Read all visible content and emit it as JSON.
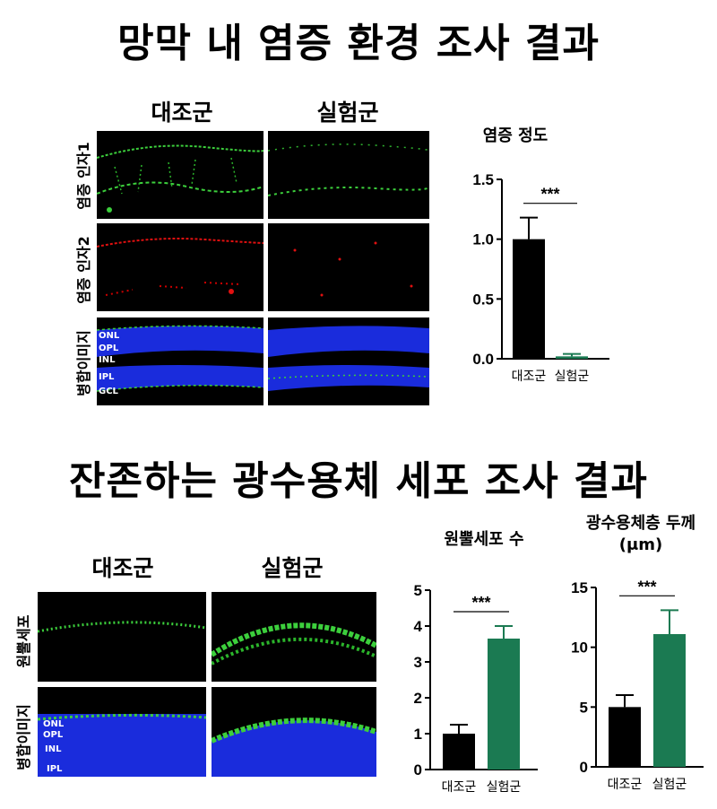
{
  "section1": {
    "title": "망막 내 염증 환경 조사 결과",
    "col_control": "대조군",
    "col_treated": "실험군",
    "rows": [
      "염증 인자1",
      "염증 인자2",
      "병합이미지"
    ],
    "layers": [
      "ONL",
      "OPL",
      "INL",
      "IPL",
      "GCL"
    ]
  },
  "section2": {
    "title": "잔존하는 광수용체 세포 조사 결과",
    "col_control": "대조군",
    "col_treated": "실험군",
    "rows": [
      "원뿔세포",
      "병합이미지"
    ],
    "layers": [
      "ONL",
      "OPL",
      "INL",
      "IPL"
    ]
  },
  "colors": {
    "control": "#000000",
    "treated": "#1b7a52",
    "green_stain": "#3ccf3c",
    "red_stain": "#e01010",
    "blue_stain": "#1a2cdc"
  },
  "chart_data": [
    {
      "type": "bar",
      "title": "염증 정도",
      "categories": [
        "대조군",
        "실험군"
      ],
      "values": [
        1.0,
        0.02
      ],
      "errors": [
        0.18,
        0.02
      ],
      "ylim": [
        0,
        1.5
      ],
      "yticks": [
        "0.0",
        "0.5",
        "1.0",
        "1.5"
      ],
      "significance": "***"
    },
    {
      "type": "bar",
      "title": "원뿔세포 수",
      "categories": [
        "대조군",
        "실험군"
      ],
      "values": [
        1.0,
        3.65
      ],
      "errors": [
        0.25,
        0.35
      ],
      "ylim": [
        0,
        5
      ],
      "yticks": [
        "0",
        "1",
        "2",
        "3",
        "4",
        "5"
      ],
      "significance": "***"
    },
    {
      "type": "bar",
      "title": "광수용체층 두께 (μm)",
      "categories": [
        "대조군",
        "실험군"
      ],
      "values": [
        5.0,
        11.1
      ],
      "errors": [
        1.0,
        2.0
      ],
      "ylim": [
        0,
        15
      ],
      "yticks": [
        "0",
        "5",
        "10",
        "15"
      ],
      "significance": "***"
    }
  ]
}
